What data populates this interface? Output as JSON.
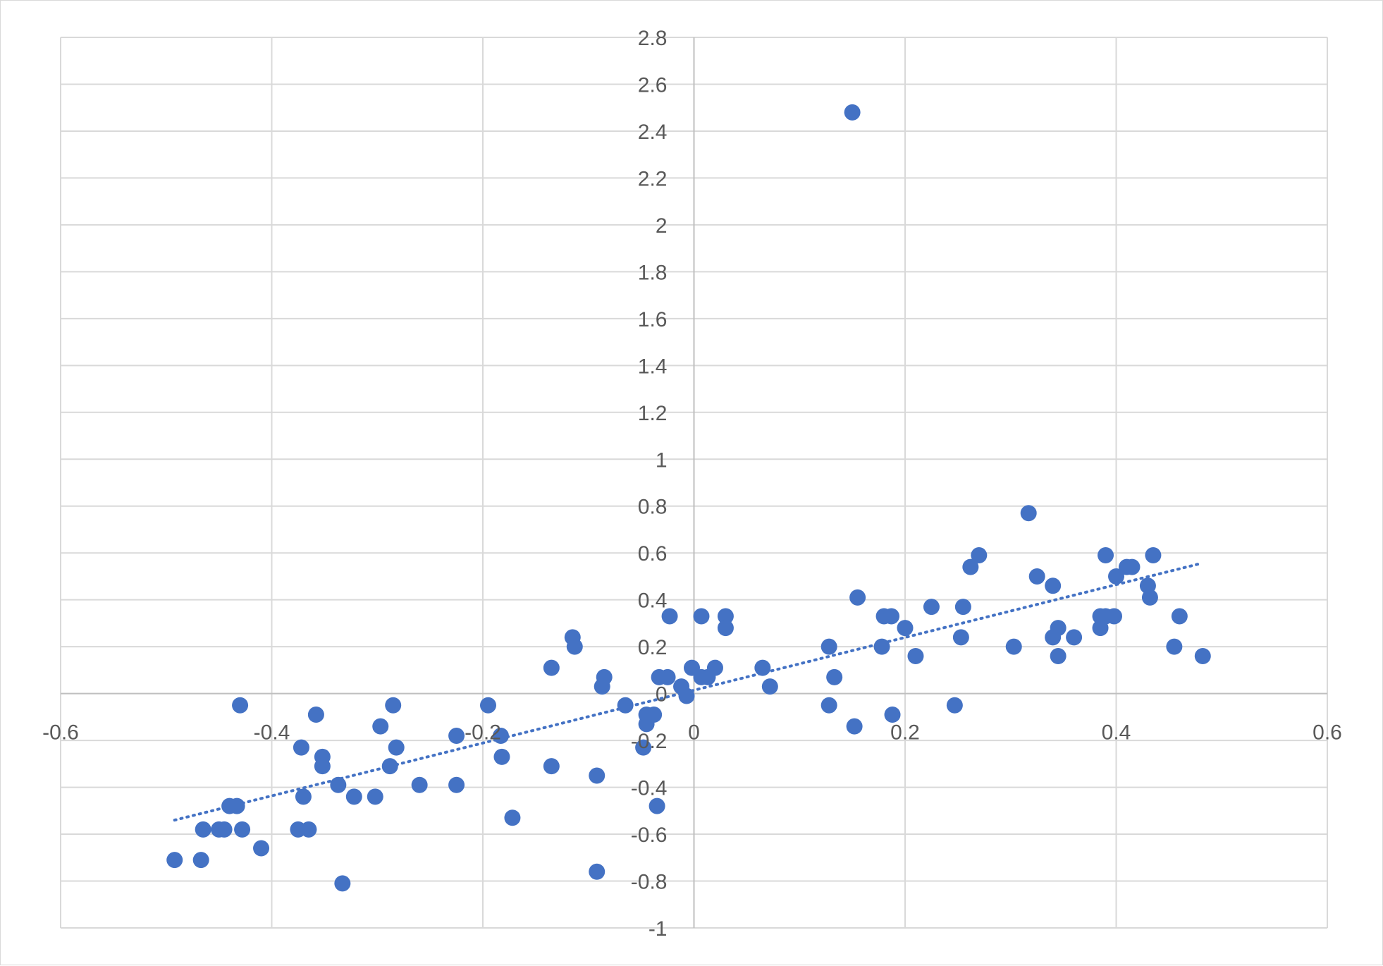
{
  "chart_data": {
    "type": "scatter",
    "title": "",
    "xlabel": "",
    "ylabel": "",
    "xlim": [
      -0.6,
      0.6
    ],
    "ylim": [
      -1,
      2.8
    ],
    "x_ticks": [
      -0.6,
      -0.4,
      -0.2,
      0,
      0.2,
      0.4,
      0.6
    ],
    "y_ticks": [
      -1,
      -0.8,
      -0.6,
      -0.4,
      -0.2,
      0,
      0.2,
      0.4,
      0.6,
      0.8,
      1,
      1.2,
      1.4,
      1.6,
      1.8,
      2,
      2.2,
      2.4,
      2.6,
      2.8
    ],
    "x_tick_labels": [
      "-0.6",
      "-0.4",
      "-0.2",
      "0",
      "0.2",
      "0.4",
      "0.6"
    ],
    "y_tick_labels": [
      "-1",
      "-0.8",
      "-0.6",
      "-0.4",
      "-0.2",
      "0",
      "0.2",
      "0.4",
      "0.6",
      "0.8",
      "1",
      "1.2",
      "1.4",
      "1.6",
      "1.8",
      "2",
      "2.2",
      "2.4",
      "2.6",
      "2.8"
    ],
    "grid": true,
    "legend": "none",
    "colors": {
      "points": "#4472C4",
      "trendline": "#4472C4",
      "grid": "#d9d9d9",
      "axis": "#bfbfbf",
      "text": "#595959"
    },
    "series": [
      {
        "marker": "circle",
        "points": [
          [
            0.15,
            2.48
          ],
          [
            0.317,
            0.77
          ],
          [
            0.27,
            0.59
          ],
          [
            0.262,
            0.54
          ],
          [
            0.325,
            0.5
          ],
          [
            0.34,
            0.46
          ],
          [
            0.39,
            0.59
          ],
          [
            0.435,
            0.59
          ],
          [
            0.41,
            0.54
          ],
          [
            0.415,
            0.54
          ],
          [
            0.4,
            0.5
          ],
          [
            0.43,
            0.46
          ],
          [
            0.432,
            0.41
          ],
          [
            0.155,
            0.41
          ],
          [
            0.225,
            0.37
          ],
          [
            0.255,
            0.37
          ],
          [
            0.18,
            0.33
          ],
          [
            0.187,
            0.33
          ],
          [
            0.385,
            0.33
          ],
          [
            0.39,
            0.33
          ],
          [
            0.398,
            0.33
          ],
          [
            0.46,
            0.33
          ],
          [
            0.2,
            0.28
          ],
          [
            0.345,
            0.28
          ],
          [
            0.385,
            0.28
          ],
          [
            0.253,
            0.24
          ],
          [
            0.34,
            0.24
          ],
          [
            0.36,
            0.24
          ],
          [
            0.178,
            0.2
          ],
          [
            0.303,
            0.2
          ],
          [
            0.455,
            0.2
          ],
          [
            0.128,
            0.2
          ],
          [
            0.21,
            0.16
          ],
          [
            0.345,
            0.16
          ],
          [
            0.482,
            0.16
          ],
          [
            -0.023,
            0.33
          ],
          [
            0.007,
            0.33
          ],
          [
            0.03,
            0.33
          ],
          [
            0.03,
            0.28
          ],
          [
            -0.115,
            0.24
          ],
          [
            -0.113,
            0.2
          ],
          [
            -0.135,
            0.11
          ],
          [
            -0.002,
            0.11
          ],
          [
            0.02,
            0.11
          ],
          [
            0.065,
            0.11
          ],
          [
            -0.085,
            0.07
          ],
          [
            -0.033,
            0.07
          ],
          [
            -0.025,
            0.07
          ],
          [
            0.007,
            0.07
          ],
          [
            0.013,
            0.07
          ],
          [
            0.133,
            0.07
          ],
          [
            -0.087,
            0.03
          ],
          [
            -0.012,
            0.03
          ],
          [
            0.072,
            0.03
          ],
          [
            -0.007,
            -0.01
          ],
          [
            -0.43,
            -0.05
          ],
          [
            -0.285,
            -0.05
          ],
          [
            -0.195,
            -0.05
          ],
          [
            -0.065,
            -0.05
          ],
          [
            0.128,
            -0.05
          ],
          [
            0.247,
            -0.05
          ],
          [
            -0.358,
            -0.09
          ],
          [
            -0.045,
            -0.09
          ],
          [
            -0.038,
            -0.09
          ],
          [
            0.188,
            -0.09
          ],
          [
            -0.045,
            -0.13
          ],
          [
            -0.297,
            -0.14
          ],
          [
            0.152,
            -0.14
          ],
          [
            -0.225,
            -0.18
          ],
          [
            -0.183,
            -0.18
          ],
          [
            -0.372,
            -0.23
          ],
          [
            -0.282,
            -0.23
          ],
          [
            -0.048,
            -0.23
          ],
          [
            -0.352,
            -0.27
          ],
          [
            -0.182,
            -0.27
          ],
          [
            -0.352,
            -0.31
          ],
          [
            -0.288,
            -0.31
          ],
          [
            -0.135,
            -0.31
          ],
          [
            -0.092,
            -0.35
          ],
          [
            -0.337,
            -0.39
          ],
          [
            -0.26,
            -0.39
          ],
          [
            -0.225,
            -0.39
          ],
          [
            -0.37,
            -0.44
          ],
          [
            -0.322,
            -0.44
          ],
          [
            -0.302,
            -0.44
          ],
          [
            -0.44,
            -0.48
          ],
          [
            -0.433,
            -0.48
          ],
          [
            -0.035,
            -0.48
          ],
          [
            -0.172,
            -0.53
          ],
          [
            -0.465,
            -0.58
          ],
          [
            -0.45,
            -0.58
          ],
          [
            -0.445,
            -0.58
          ],
          [
            -0.428,
            -0.58
          ],
          [
            -0.375,
            -0.58
          ],
          [
            -0.365,
            -0.58
          ],
          [
            -0.41,
            -0.66
          ],
          [
            -0.492,
            -0.71
          ],
          [
            -0.467,
            -0.71
          ],
          [
            -0.092,
            -0.76
          ],
          [
            -0.333,
            -0.81
          ]
        ]
      }
    ],
    "trendline": {
      "type": "linear",
      "style": "dotted",
      "from": [
        -0.492,
        -0.54
      ],
      "to": [
        0.48,
        0.555
      ]
    }
  }
}
